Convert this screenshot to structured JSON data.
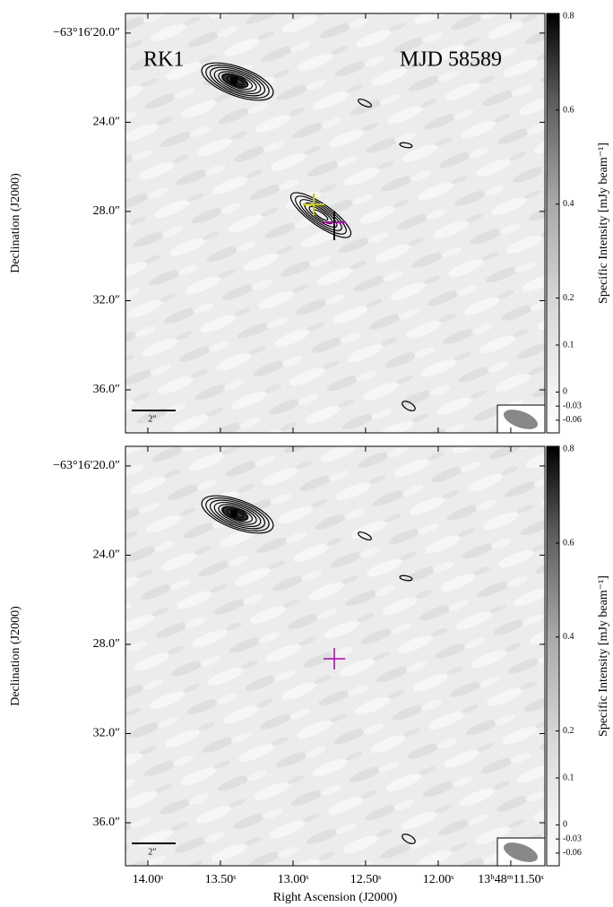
{
  "chart_data": [
    {
      "type": "image",
      "annotations": [
        "RK1",
        "MJD 58589"
      ],
      "scale_bar_label": "2″",
      "ylabel": "Declination (J2000)",
      "xlim": [
        14.154,
        11.265
      ],
      "ylim": [
        19.12,
        37.93
      ],
      "yticks": [
        {
          "value": 20,
          "label": "−63°16′20.0″"
        },
        {
          "value": 24,
          "label": "24.0″"
        },
        {
          "value": 28,
          "label": "28.0″"
        },
        {
          "value": 32,
          "label": "32.0″"
        },
        {
          "value": 36,
          "label": "36.0″"
        }
      ],
      "colorbar": {
        "label": "Specific Intensity [mJy beam⁻¹]",
        "lim": [
          -0.087,
          0.806
        ],
        "ticks": [
          0.8,
          0.6,
          0.4,
          0.2,
          0.1,
          0,
          -0.03,
          -0.06
        ]
      }
    },
    {
      "type": "image",
      "scale_bar_label": "2″",
      "ylabel": "Declination (J2000)",
      "xlabel": "Right Ascension (J2000)",
      "xlim": [
        14.154,
        11.265
      ],
      "ylim": [
        19.12,
        37.93
      ],
      "xticks": [
        {
          "value": 14.0,
          "label": "14.00ˢ"
        },
        {
          "value": 13.5,
          "label": "13.50ˢ"
        },
        {
          "value": 13.0,
          "label": "13.00ˢ"
        },
        {
          "value": 12.5,
          "label": "12.50ˢ"
        },
        {
          "value": 12.0,
          "label": "12.00ˢ"
        },
        {
          "value": 11.5,
          "label": "13ʰ48ᵐ11.50ˢ"
        }
      ],
      "yticks": [
        {
          "value": 20,
          "label": "−63°16′20.0″"
        },
        {
          "value": 24,
          "label": "24.0″"
        },
        {
          "value": 28,
          "label": "28.0″"
        },
        {
          "value": 32,
          "label": "32.0″"
        },
        {
          "value": 36,
          "label": "36.0″"
        }
      ],
      "colorbar": {
        "label": "Specific Intensity [mJy beam⁻¹]",
        "lim": [
          -0.087,
          0.806
        ],
        "ticks": [
          0.8,
          0.6,
          0.4,
          0.2,
          0.1,
          0,
          -0.03,
          -0.06
        ]
      }
    }
  ]
}
